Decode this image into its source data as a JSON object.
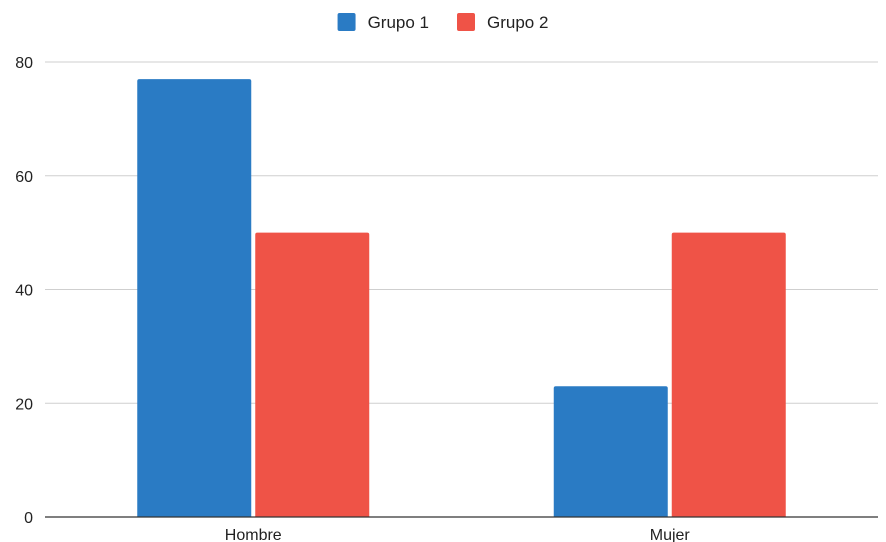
{
  "chart_data": {
    "type": "bar",
    "categories": [
      "Hombre",
      "Mujer"
    ],
    "series": [
      {
        "name": "Grupo 1",
        "color": "#2a7bc4",
        "values": [
          77,
          23
        ]
      },
      {
        "name": "Grupo 2",
        "color": "#ef5347",
        "values": [
          50,
          50
        ]
      }
    ],
    "ylim": [
      0,
      80
    ],
    "yticks": [
      0,
      20,
      40,
      60,
      80
    ],
    "ytick_labels": [
      "0",
      "20",
      "40",
      "60",
      "80"
    ],
    "grid": true,
    "legend_position": "top-center"
  }
}
